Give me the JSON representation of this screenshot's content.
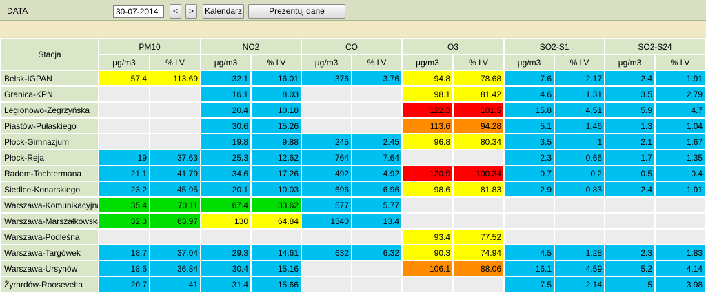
{
  "toolbar": {
    "date_label": "DATA",
    "date_value": "30-07-2014",
    "prev_label": "<",
    "next_label": ">",
    "calendar_label": "Kalendarz",
    "show_label": "Prezentuj dane"
  },
  "colors": {
    "blue": "#00c0f0",
    "yellow": "#ffff00",
    "orange": "#ff8c00",
    "red": "#ff0000",
    "green": "#00dd00",
    "empty": "#ececec",
    "header": "#d9e6c8"
  },
  "table": {
    "station_header": "Stacja",
    "pollutants": [
      "PM10",
      "NO2",
      "CO",
      "O3",
      "SO2-S1",
      "SO2-S24"
    ],
    "subheaders": [
      "µg/m3",
      "% LV",
      "µg/m3",
      "% LV",
      "µg/m3",
      "% LV",
      "µg/m3",
      "% LV",
      "µg/m3",
      "% LV",
      "µg/m3",
      "% LV"
    ],
    "rows": [
      {
        "station": "Belsk-IGPAN",
        "cells": [
          {
            "v": "57.4",
            "c": "yellow"
          },
          {
            "v": "113.69",
            "c": "yellow"
          },
          {
            "v": "32.1",
            "c": "blue"
          },
          {
            "v": "16.01",
            "c": "blue"
          },
          {
            "v": "376",
            "c": "blue"
          },
          {
            "v": "3.76",
            "c": "blue"
          },
          {
            "v": "94.8",
            "c": "yellow"
          },
          {
            "v": "78.68",
            "c": "yellow"
          },
          {
            "v": "7.6",
            "c": "blue"
          },
          {
            "v": "2.17",
            "c": "blue"
          },
          {
            "v": "2.4",
            "c": "blue"
          },
          {
            "v": "1.91",
            "c": "blue"
          }
        ]
      },
      {
        "station": "Granica-KPN",
        "cells": [
          {
            "v": "",
            "c": "empty"
          },
          {
            "v": "",
            "c": "empty"
          },
          {
            "v": "16.1",
            "c": "blue"
          },
          {
            "v": "8.03",
            "c": "blue"
          },
          {
            "v": "",
            "c": "empty"
          },
          {
            "v": "",
            "c": "empty"
          },
          {
            "v": "98.1",
            "c": "yellow"
          },
          {
            "v": "81.42",
            "c": "yellow"
          },
          {
            "v": "4.6",
            "c": "blue"
          },
          {
            "v": "1.31",
            "c": "blue"
          },
          {
            "v": "3.5",
            "c": "blue"
          },
          {
            "v": "2.79",
            "c": "blue"
          }
        ]
      },
      {
        "station": "Legionowo-Zegrzyńska",
        "cells": [
          {
            "v": "",
            "c": "empty"
          },
          {
            "v": "",
            "c": "empty"
          },
          {
            "v": "20.4",
            "c": "blue"
          },
          {
            "v": "10.18",
            "c": "blue"
          },
          {
            "v": "",
            "c": "empty"
          },
          {
            "v": "",
            "c": "empty"
          },
          {
            "v": "122.3",
            "c": "red"
          },
          {
            "v": "101.5",
            "c": "red"
          },
          {
            "v": "15.8",
            "c": "blue"
          },
          {
            "v": "4.51",
            "c": "blue"
          },
          {
            "v": "5.9",
            "c": "blue"
          },
          {
            "v": "4.7",
            "c": "blue"
          }
        ]
      },
      {
        "station": "Piastów-Pułaskiego",
        "cells": [
          {
            "v": "",
            "c": "empty"
          },
          {
            "v": "",
            "c": "empty"
          },
          {
            "v": "30.6",
            "c": "blue"
          },
          {
            "v": "15.26",
            "c": "blue"
          },
          {
            "v": "",
            "c": "empty"
          },
          {
            "v": "",
            "c": "empty"
          },
          {
            "v": "113.6",
            "c": "orange"
          },
          {
            "v": "94.28",
            "c": "orange"
          },
          {
            "v": "5.1",
            "c": "blue"
          },
          {
            "v": "1.46",
            "c": "blue"
          },
          {
            "v": "1.3",
            "c": "blue"
          },
          {
            "v": "1.04",
            "c": "blue"
          }
        ]
      },
      {
        "station": "Płock-Gimnazjum",
        "cells": [
          {
            "v": "",
            "c": "empty"
          },
          {
            "v": "",
            "c": "empty"
          },
          {
            "v": "19.8",
            "c": "blue"
          },
          {
            "v": "9.88",
            "c": "blue"
          },
          {
            "v": "245",
            "c": "blue"
          },
          {
            "v": "2.45",
            "c": "blue"
          },
          {
            "v": "96.8",
            "c": "yellow"
          },
          {
            "v": "80.34",
            "c": "yellow"
          },
          {
            "v": "3.5",
            "c": "blue"
          },
          {
            "v": "1",
            "c": "blue"
          },
          {
            "v": "2.1",
            "c": "blue"
          },
          {
            "v": "1.67",
            "c": "blue"
          }
        ]
      },
      {
        "station": "Płock-Reja",
        "cells": [
          {
            "v": "19",
            "c": "blue"
          },
          {
            "v": "37.63",
            "c": "blue"
          },
          {
            "v": "25.3",
            "c": "blue"
          },
          {
            "v": "12.62",
            "c": "blue"
          },
          {
            "v": "764",
            "c": "blue"
          },
          {
            "v": "7.64",
            "c": "blue"
          },
          {
            "v": "",
            "c": "empty"
          },
          {
            "v": "",
            "c": "empty"
          },
          {
            "v": "2.3",
            "c": "blue"
          },
          {
            "v": "0.66",
            "c": "blue"
          },
          {
            "v": "1.7",
            "c": "blue"
          },
          {
            "v": "1.35",
            "c": "blue"
          }
        ]
      },
      {
        "station": "Radom-Tochtermana",
        "cells": [
          {
            "v": "21.1",
            "c": "blue"
          },
          {
            "v": "41.79",
            "c": "blue"
          },
          {
            "v": "34.6",
            "c": "blue"
          },
          {
            "v": "17.26",
            "c": "blue"
          },
          {
            "v": "492",
            "c": "blue"
          },
          {
            "v": "4.92",
            "c": "blue"
          },
          {
            "v": "120.9",
            "c": "red"
          },
          {
            "v": "100.34",
            "c": "red"
          },
          {
            "v": "0.7",
            "c": "blue"
          },
          {
            "v": "0.2",
            "c": "blue"
          },
          {
            "v": "0.5",
            "c": "blue"
          },
          {
            "v": "0.4",
            "c": "blue"
          }
        ]
      },
      {
        "station": "Siedlce-Konarskiego",
        "cells": [
          {
            "v": "23.2",
            "c": "blue"
          },
          {
            "v": "45.95",
            "c": "blue"
          },
          {
            "v": "20.1",
            "c": "blue"
          },
          {
            "v": "10.03",
            "c": "blue"
          },
          {
            "v": "696",
            "c": "blue"
          },
          {
            "v": "6.96",
            "c": "blue"
          },
          {
            "v": "98.6",
            "c": "yellow"
          },
          {
            "v": "81.83",
            "c": "yellow"
          },
          {
            "v": "2.9",
            "c": "blue"
          },
          {
            "v": "0.83",
            "c": "blue"
          },
          {
            "v": "2.4",
            "c": "blue"
          },
          {
            "v": "1.91",
            "c": "blue"
          }
        ]
      },
      {
        "station": "Warszawa-Komunikacyjna",
        "cells": [
          {
            "v": "35.4",
            "c": "green"
          },
          {
            "v": "70.11",
            "c": "green"
          },
          {
            "v": "67.4",
            "c": "green"
          },
          {
            "v": "33.62",
            "c": "green"
          },
          {
            "v": "577",
            "c": "blue"
          },
          {
            "v": "5.77",
            "c": "blue"
          },
          {
            "v": "",
            "c": "empty"
          },
          {
            "v": "",
            "c": "empty"
          },
          {
            "v": "",
            "c": "empty"
          },
          {
            "v": "",
            "c": "empty"
          },
          {
            "v": "",
            "c": "empty"
          },
          {
            "v": "",
            "c": "empty"
          }
        ]
      },
      {
        "station": "Warszawa-Marszałkowska",
        "cells": [
          {
            "v": "32.3",
            "c": "green"
          },
          {
            "v": "63.97",
            "c": "green"
          },
          {
            "v": "130",
            "c": "yellow"
          },
          {
            "v": "64.84",
            "c": "yellow"
          },
          {
            "v": "1340",
            "c": "blue"
          },
          {
            "v": "13.4",
            "c": "blue"
          },
          {
            "v": "",
            "c": "empty"
          },
          {
            "v": "",
            "c": "empty"
          },
          {
            "v": "",
            "c": "empty"
          },
          {
            "v": "",
            "c": "empty"
          },
          {
            "v": "",
            "c": "empty"
          },
          {
            "v": "",
            "c": "empty"
          }
        ]
      },
      {
        "station": "Warszawa-Podleśna",
        "cells": [
          {
            "v": "",
            "c": "empty"
          },
          {
            "v": "",
            "c": "empty"
          },
          {
            "v": "",
            "c": "empty"
          },
          {
            "v": "",
            "c": "empty"
          },
          {
            "v": "",
            "c": "empty"
          },
          {
            "v": "",
            "c": "empty"
          },
          {
            "v": "93.4",
            "c": "yellow"
          },
          {
            "v": "77.52",
            "c": "yellow"
          },
          {
            "v": "",
            "c": "empty"
          },
          {
            "v": "",
            "c": "empty"
          },
          {
            "v": "",
            "c": "empty"
          },
          {
            "v": "",
            "c": "empty"
          }
        ]
      },
      {
        "station": "Warszawa-Targówek",
        "cells": [
          {
            "v": "18.7",
            "c": "blue"
          },
          {
            "v": "37.04",
            "c": "blue"
          },
          {
            "v": "29.3",
            "c": "blue"
          },
          {
            "v": "14.61",
            "c": "blue"
          },
          {
            "v": "632",
            "c": "blue"
          },
          {
            "v": "6.32",
            "c": "blue"
          },
          {
            "v": "90.3",
            "c": "yellow"
          },
          {
            "v": "74.94",
            "c": "yellow"
          },
          {
            "v": "4.5",
            "c": "blue"
          },
          {
            "v": "1.28",
            "c": "blue"
          },
          {
            "v": "2.3",
            "c": "blue"
          },
          {
            "v": "1.83",
            "c": "blue"
          }
        ]
      },
      {
        "station": "Warszawa-Ursynów",
        "cells": [
          {
            "v": "18.6",
            "c": "blue"
          },
          {
            "v": "36.84",
            "c": "blue"
          },
          {
            "v": "30.4",
            "c": "blue"
          },
          {
            "v": "15.16",
            "c": "blue"
          },
          {
            "v": "",
            "c": "empty"
          },
          {
            "v": "",
            "c": "empty"
          },
          {
            "v": "106.1",
            "c": "orange"
          },
          {
            "v": "88.06",
            "c": "orange"
          },
          {
            "v": "16.1",
            "c": "blue"
          },
          {
            "v": "4.59",
            "c": "blue"
          },
          {
            "v": "5.2",
            "c": "blue"
          },
          {
            "v": "4.14",
            "c": "blue"
          }
        ]
      },
      {
        "station": "Żyrardów-Roosevelta",
        "cells": [
          {
            "v": "20.7",
            "c": "blue"
          },
          {
            "v": "41",
            "c": "blue"
          },
          {
            "v": "31.4",
            "c": "blue"
          },
          {
            "v": "15.66",
            "c": "blue"
          },
          {
            "v": "",
            "c": "empty"
          },
          {
            "v": "",
            "c": "empty"
          },
          {
            "v": "",
            "c": "empty"
          },
          {
            "v": "",
            "c": "empty"
          },
          {
            "v": "7.5",
            "c": "blue"
          },
          {
            "v": "2.14",
            "c": "blue"
          },
          {
            "v": "5",
            "c": "blue"
          },
          {
            "v": "3.98",
            "c": "blue"
          }
        ]
      }
    ]
  }
}
